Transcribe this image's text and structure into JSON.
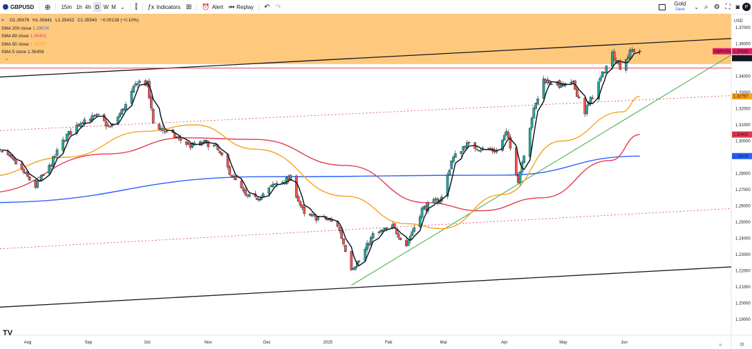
{
  "toolbar": {
    "symbol": "GBPUSD",
    "add_icon": "plus-circle-icon",
    "intervals": [
      "15m",
      "1h",
      "4h",
      "D",
      "W",
      "M"
    ],
    "active_interval": "D",
    "interval_dropdown_icon": "chevron-down-icon",
    "indicators_label": "Indicators",
    "alert_label": "Alert",
    "replay_label": "Replay",
    "layout_name": "Gold",
    "save_label": "Save"
  },
  "legend": {
    "ohlc": {
      "o": "O1.35678",
      "h": "H1.35841",
      "l": "L1.35432",
      "c": "C1.35540",
      "chg": "−0.00138 (−0.10%)"
    },
    "sma200": {
      "label": "SMA 200 close",
      "value": "1.29074",
      "color": "#2962ff"
    },
    "sma89": {
      "label": "SMA 89 close",
      "value": "1.30402",
      "color": "#e53950"
    },
    "sma50": {
      "label": "SMA 50 close",
      "value": "1.32757",
      "color": "#f7a21b"
    },
    "sma5": {
      "label": "SMA 5 close",
      "value": "1.35459",
      "color": "#131722"
    }
  },
  "currency": "USD",
  "branding": "TV",
  "chart_data": {
    "type": "candlestick",
    "symbol": "GBPUSD",
    "timeframe": "D",
    "ylim": [
      1.185,
      1.375
    ],
    "y_ticks": [
      "1.37000",
      "1.36000",
      "1.34000",
      "1.33000",
      "1.32000",
      "1.31000",
      "1.30000",
      "1.28000",
      "1.27000",
      "1.26000",
      "1.25000",
      "1.24000",
      "1.23000",
      "1.22000",
      "1.21000",
      "1.20000",
      "1.19000"
    ],
    "x_ticks": [
      "Aug",
      "Sep",
      "Oct",
      "Nov",
      "Dec",
      "2025",
      "Feb",
      "Mar",
      "Apr",
      "May",
      "Jun"
    ],
    "price_labels": [
      {
        "text": "GBPUSD",
        "value": "1.35540",
        "color": "#e91e63"
      },
      {
        "text": "",
        "value": "1.35459",
        "color": "#131722"
      },
      {
        "text": "",
        "value": "1.32757",
        "color": "#f7a21b"
      },
      {
        "text": "",
        "value": "1.30402",
        "color": "#e53950"
      },
      {
        "text": "",
        "value": "1.29074",
        "color": "#2962ff"
      }
    ],
    "close_anchors": [
      [
        "2024-07-15",
        1.296
      ],
      [
        "2024-07-26",
        1.286
      ],
      [
        "2024-08-05",
        1.272
      ],
      [
        "2024-08-12",
        1.284
      ],
      [
        "2024-08-20",
        1.302
      ],
      [
        "2024-08-29",
        1.313
      ],
      [
        "2024-09-06",
        1.315
      ],
      [
        "2024-09-12",
        1.308
      ],
      [
        "2024-09-20",
        1.322
      ],
      [
        "2024-09-26",
        1.337
      ],
      [
        "2024-10-01",
        1.335
      ],
      [
        "2024-10-04",
        1.311
      ],
      [
        "2024-10-10",
        1.306
      ],
      [
        "2024-10-16",
        1.302
      ],
      [
        "2024-10-23",
        1.297
      ],
      [
        "2024-10-31",
        1.299
      ],
      [
        "2024-11-05",
        1.296
      ],
      [
        "2024-11-12",
        1.281
      ],
      [
        "2024-11-20",
        1.266
      ],
      [
        "2024-11-25",
        1.264
      ],
      [
        "2024-12-06",
        1.274
      ],
      [
        "2024-12-13",
        1.277
      ],
      [
        "2024-12-20",
        1.254
      ],
      [
        "2024-12-31",
        1.252
      ],
      [
        "2025-01-06",
        1.248
      ],
      [
        "2025-01-13",
        1.222
      ],
      [
        "2025-01-17",
        1.226
      ],
      [
        "2025-01-24",
        1.242
      ],
      [
        "2025-02-03",
        1.247
      ],
      [
        "2025-02-10",
        1.236
      ],
      [
        "2025-02-18",
        1.258
      ],
      [
        "2025-02-28",
        1.265
      ],
      [
        "2025-03-05",
        1.288
      ],
      [
        "2025-03-12",
        1.298
      ],
      [
        "2025-03-21",
        1.295
      ],
      [
        "2025-03-28",
        1.294
      ],
      [
        "2025-04-02",
        1.305
      ],
      [
        "2025-04-08",
        1.276
      ],
      [
        "2025-04-15",
        1.315
      ],
      [
        "2025-04-21",
        1.338
      ],
      [
        "2025-04-30",
        1.334
      ],
      [
        "2025-05-06",
        1.335
      ],
      [
        "2025-05-12",
        1.318
      ],
      [
        "2025-05-16",
        1.328
      ],
      [
        "2025-05-26",
        1.354
      ],
      [
        "2025-05-30",
        1.346
      ],
      [
        "2025-06-05",
        1.356
      ],
      [
        "2025-06-09",
        1.3554
      ]
    ],
    "series": [
      {
        "name": "SMA 200 close",
        "color": "#2962ff",
        "points": [
          [
            "2024-07-10",
            1.262
          ],
          [
            "2024-12-01",
            1.278
          ],
          [
            "2025-04-01",
            1.279
          ],
          [
            "2025-06-09",
            1.29074
          ]
        ]
      },
      {
        "name": "SMA 89 close",
        "color": "#e53950",
        "points": [
          [
            "2024-07-10",
            1.268
          ],
          [
            "2024-09-10",
            1.292
          ],
          [
            "2024-10-20",
            1.302
          ],
          [
            "2024-11-25",
            1.301
          ],
          [
            "2025-01-10",
            1.285
          ],
          [
            "2025-02-20",
            1.262
          ],
          [
            "2025-03-20",
            1.257
          ],
          [
            "2025-04-20",
            1.265
          ],
          [
            "2025-05-25",
            1.288
          ],
          [
            "2025-06-09",
            1.30402
          ]
        ]
      },
      {
        "name": "SMA 50 close",
        "color": "#f7a21b",
        "points": [
          [
            "2024-07-10",
            1.278
          ],
          [
            "2024-08-20",
            1.29
          ],
          [
            "2024-09-30",
            1.306
          ],
          [
            "2024-10-25",
            1.31
          ],
          [
            "2024-11-25",
            1.295
          ],
          [
            "2025-01-10",
            1.266
          ],
          [
            "2025-02-10",
            1.249
          ],
          [
            "2025-02-28",
            1.246
          ],
          [
            "2025-03-31",
            1.267
          ],
          [
            "2025-04-30",
            1.3
          ],
          [
            "2025-05-31",
            1.318
          ],
          [
            "2025-06-09",
            1.32757
          ]
        ]
      }
    ],
    "trendlines": [
      {
        "kind": "channel-top",
        "color": "#131722",
        "from": [
          "2024-07-10",
          1.339
        ],
        "to": [
          "2025-06-20",
          1.361
        ]
      },
      {
        "kind": "channel-bottom",
        "color": "#131722",
        "from": [
          "2024-07-10",
          1.197
        ],
        "to": [
          "2025-06-20",
          1.22
        ]
      },
      {
        "kind": "support",
        "color": "#4caf50",
        "from": [
          "2025-01-13",
          1.211
        ],
        "to": [
          "2025-06-20",
          1.327
        ]
      },
      {
        "kind": "dashed-upper",
        "color": "#e53950",
        "from": [
          "2024-07-10",
          1.306
        ],
        "to": [
          "2025-06-20",
          1.326
        ]
      },
      {
        "kind": "dashed-lower",
        "color": "#e53950",
        "from": [
          "2024-07-10",
          1.233
        ],
        "to": [
          "2025-06-20",
          1.256
        ]
      },
      {
        "kind": "horizontal",
        "color": "#e53950",
        "value": 1.345
      }
    ],
    "highlight_zone": {
      "from": 1.3475,
      "to": 1.375,
      "color": "#ffbf66"
    }
  }
}
